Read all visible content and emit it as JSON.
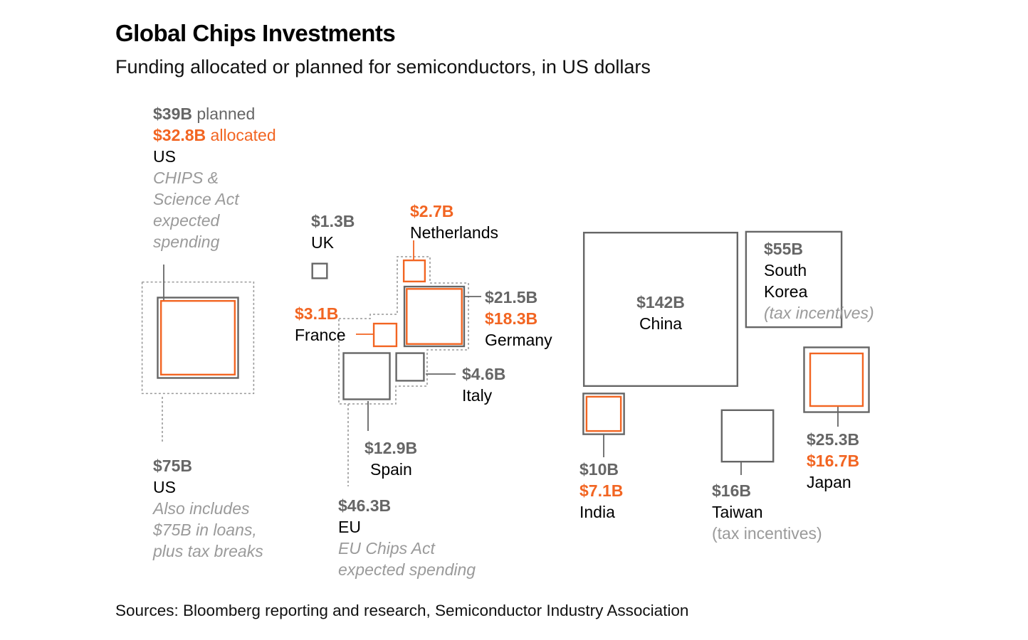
{
  "title": "Global Chips Investments",
  "subtitle": "Funding allocated or planned for semiconductors, in US dollars",
  "source": "Sources: Bloomberg reporting and research, Semiconductor Industry Association",
  "colors": {
    "planned": "#666666",
    "allocated": "#f26522",
    "group_outline": "#999999",
    "text": "#000000",
    "note": "#9a9a9a"
  },
  "chart_data": {
    "type": "proportional-area squares",
    "unit": "US$ billions",
    "items": [
      {
        "country": "US",
        "planned": 39,
        "allocated": 32.8,
        "planned_label": "$39B",
        "planned_word": " planned",
        "allocated_label": "$32.8B",
        "allocated_word": " allocated",
        "note": "CHIPS & Science Act expected spending",
        "note_lines": [
          "CHIPS &",
          "Science Act",
          "expected",
          "spending"
        ]
      },
      {
        "country": "US",
        "total": 75,
        "total_label": "$75B",
        "note": "Also includes $75B in loans, plus tax breaks",
        "note_lines": [
          "Also includes",
          "$75B in loans,",
          "plus tax breaks"
        ],
        "style": "dotted outline"
      },
      {
        "country": "UK",
        "planned": 1.3,
        "planned_label": "$1.3B"
      },
      {
        "country": "Netherlands",
        "allocated": 2.7,
        "allocated_label": "$2.7B",
        "group": "EU"
      },
      {
        "country": "Germany",
        "planned": 21.5,
        "allocated": 18.3,
        "planned_label": "$21.5B",
        "allocated_label": "$18.3B",
        "group": "EU"
      },
      {
        "country": "France",
        "allocated": 3.1,
        "allocated_label": "$3.1B",
        "group": "EU"
      },
      {
        "country": "Italy",
        "planned": 4.6,
        "planned_label": "$4.6B",
        "group": "EU"
      },
      {
        "country": "Spain",
        "planned": 12.9,
        "planned_label": "$12.9B",
        "group": "EU"
      },
      {
        "country": "EU",
        "total": 46.3,
        "total_label": "$46.3B",
        "note": "EU Chips Act expected spending",
        "note_lines": [
          "EU Chips Act",
          "expected spending"
        ],
        "style": "dotted outline"
      },
      {
        "country": "China",
        "planned": 142,
        "planned_label": "$142B"
      },
      {
        "country": "South Korea",
        "name_lines": [
          "South",
          "Korea"
        ],
        "planned": 55,
        "planned_label": "$55B",
        "note": "(tax incentives)"
      },
      {
        "country": "India",
        "planned": 10,
        "allocated": 7.1,
        "planned_label": "$10B",
        "allocated_label": "$7.1B"
      },
      {
        "country": "Taiwan",
        "planned": 16,
        "planned_label": "$16B",
        "note": "(tax incentives)"
      },
      {
        "country": "Japan",
        "planned": 25.3,
        "allocated": 16.7,
        "planned_label": "$25.3B",
        "allocated_label": "$16.7B"
      }
    ]
  }
}
